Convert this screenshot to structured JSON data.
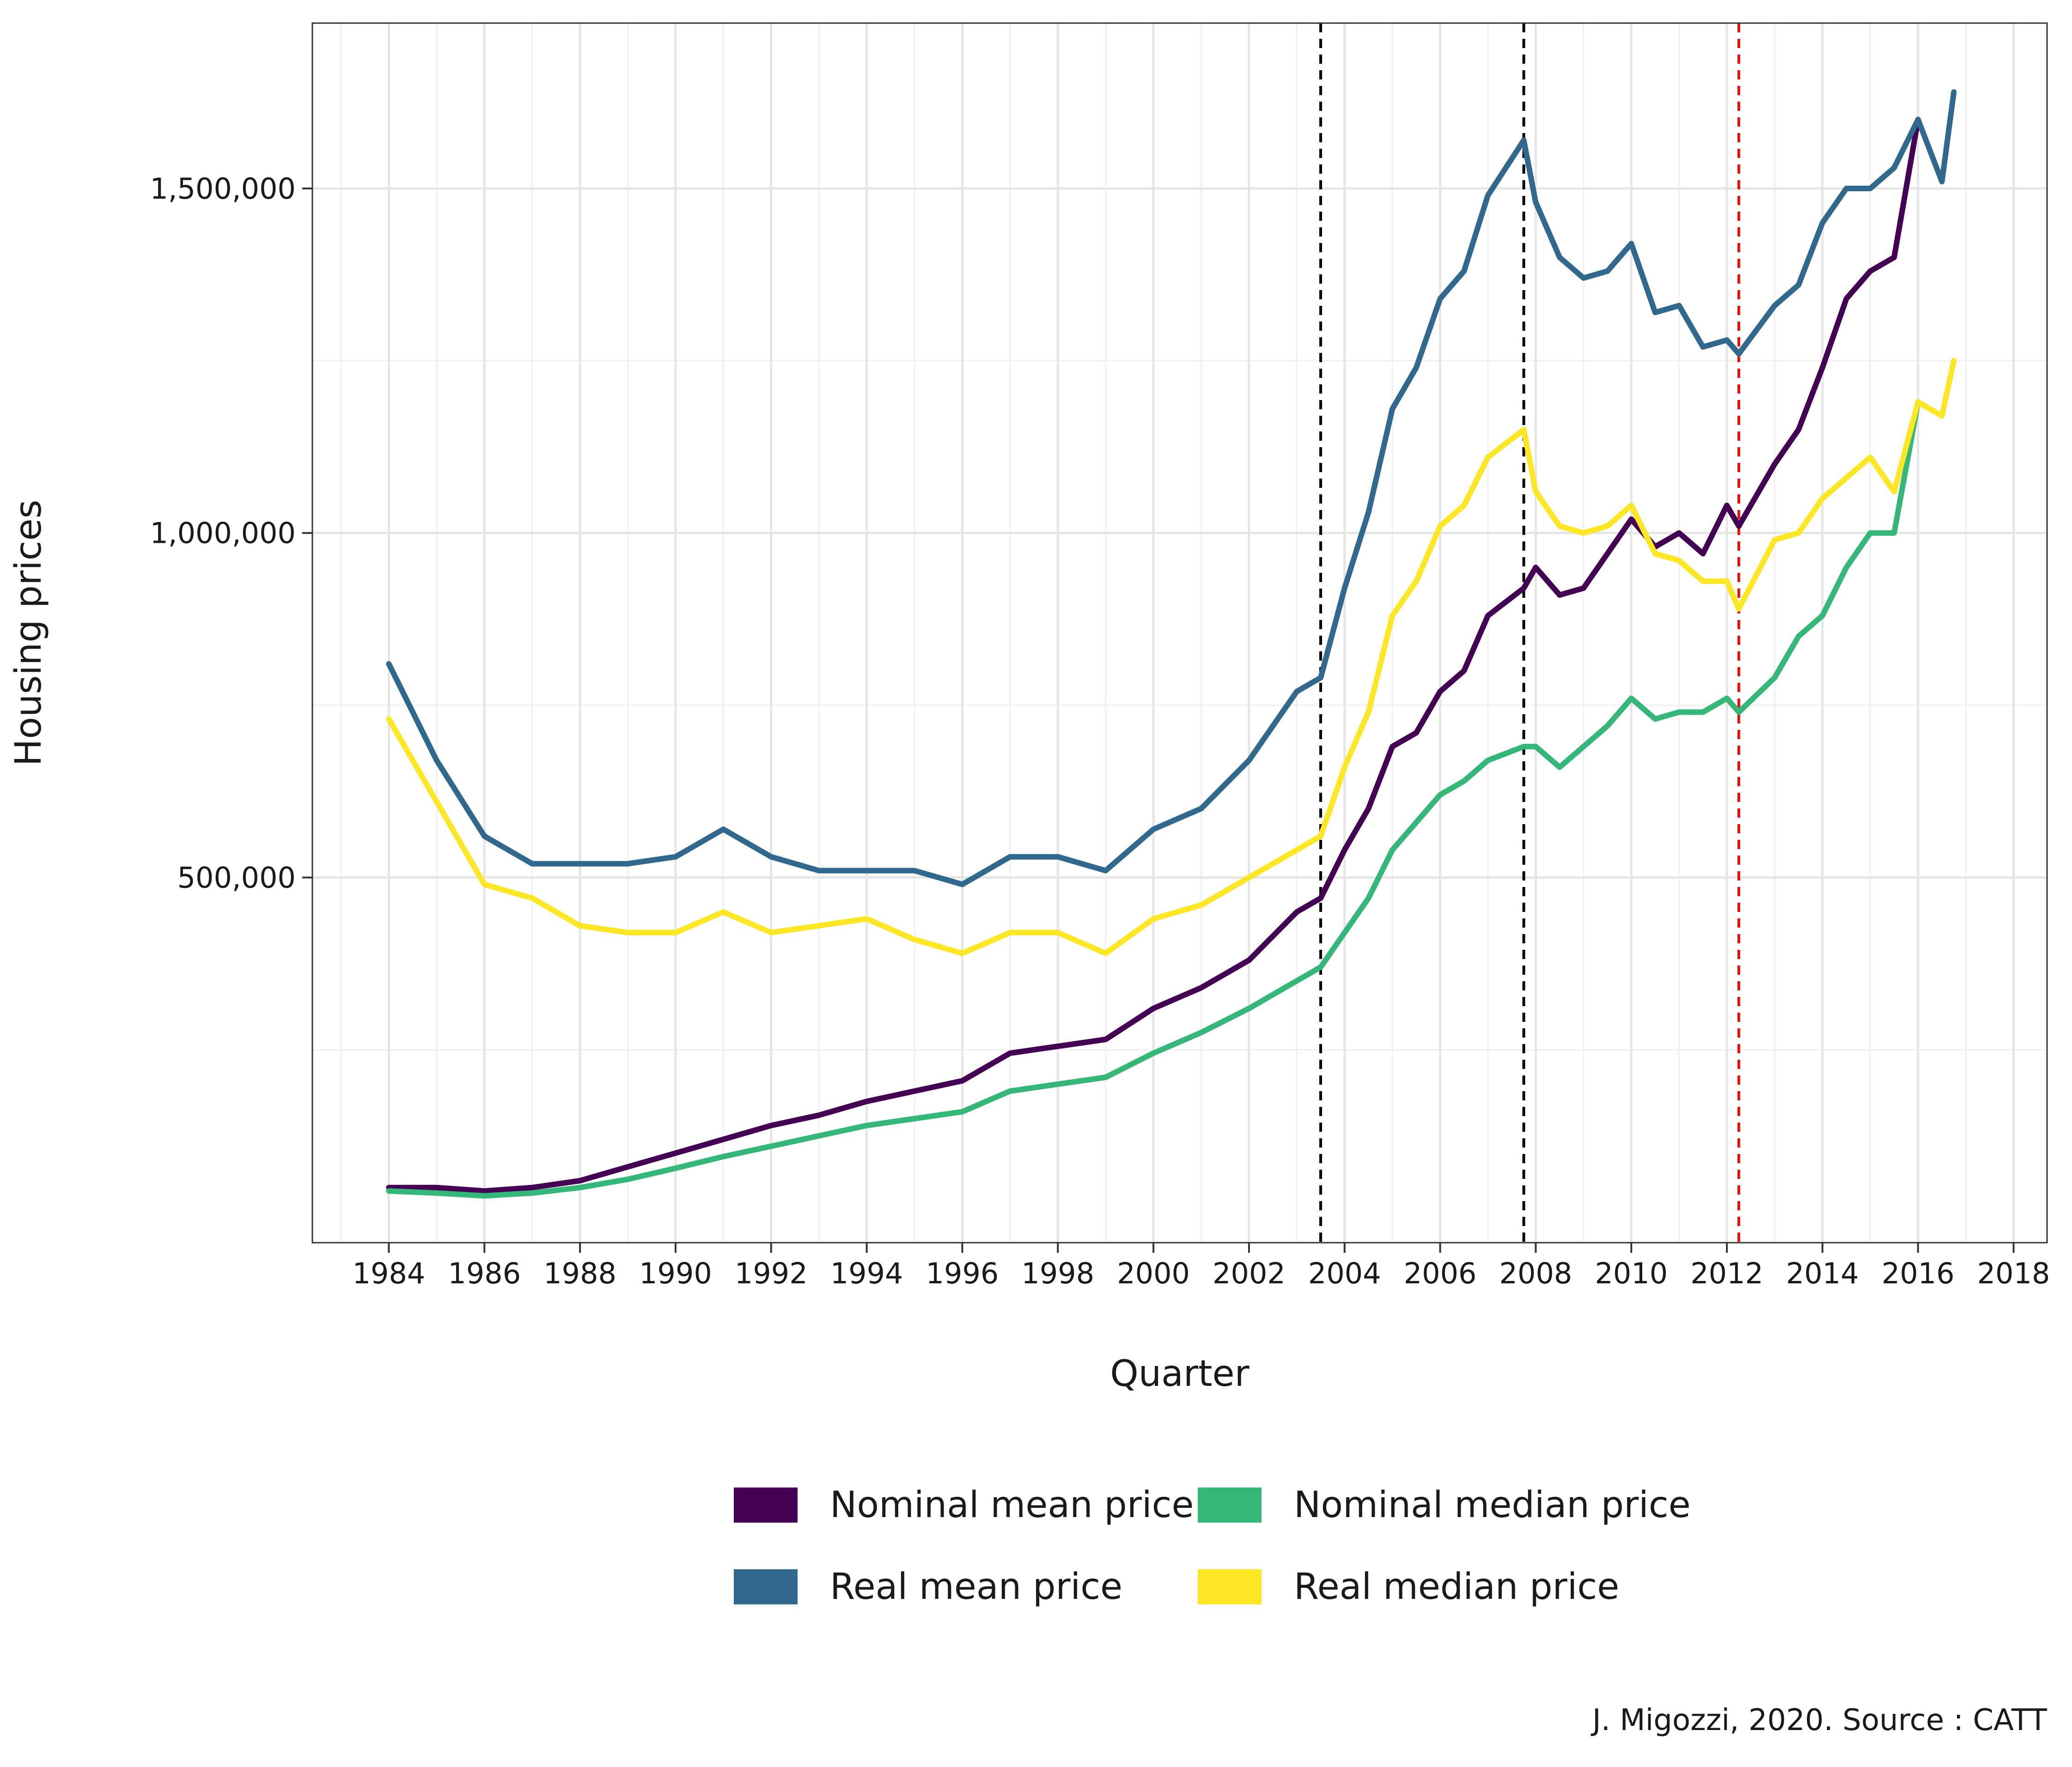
{
  "chart_data": {
    "type": "line",
    "xlabel": "Quarter",
    "ylabel": "Housing prices",
    "caption": "J. Migozzi, 2020. Source : CATT",
    "xlim": [
      1982.4,
      2018.7
    ],
    "ylim": [
      -30000,
      1740000
    ],
    "x_ticks": [
      "1984",
      "1986",
      "1988",
      "1990",
      "1992",
      "1994",
      "1996",
      "1998",
      "2000",
      "2002",
      "2004",
      "2006",
      "2008",
      "2010",
      "2012",
      "2014",
      "2016",
      "2018"
    ],
    "y_ticks": [
      {
        "value": 500000,
        "label": "500,000"
      },
      {
        "value": 1000000,
        "label": "1,000,000"
      },
      {
        "value": 1500000,
        "label": "1,500,000"
      }
    ],
    "grid": true,
    "legend_position": "bottom",
    "vlines": [
      {
        "x": 2003.5,
        "color": "#000000"
      },
      {
        "x": 2007.75,
        "color": "#000000"
      },
      {
        "x": 2012.25,
        "color": "#e8140c"
      }
    ],
    "series": [
      {
        "name": "Nominal mean price",
        "color": "#440154",
        "points": [
          [
            1984.0,
            50000
          ],
          [
            1985.0,
            50000
          ],
          [
            1986.0,
            45000
          ],
          [
            1987.0,
            50000
          ],
          [
            1988.0,
            60000
          ],
          [
            1989.0,
            80000
          ],
          [
            1990.0,
            100000
          ],
          [
            1991.0,
            120000
          ],
          [
            1992.0,
            140000
          ],
          [
            1993.0,
            155000
          ],
          [
            1994.0,
            175000
          ],
          [
            1995.0,
            190000
          ],
          [
            1996.0,
            205000
          ],
          [
            1997.0,
            245000
          ],
          [
            1998.0,
            255000
          ],
          [
            1999.0,
            265000
          ],
          [
            2000.0,
            310000
          ],
          [
            2001.0,
            340000
          ],
          [
            2002.0,
            380000
          ],
          [
            2003.0,
            450000
          ],
          [
            2003.5,
            470000
          ],
          [
            2004.0,
            540000
          ],
          [
            2004.5,
            600000
          ],
          [
            2005.0,
            690000
          ],
          [
            2005.5,
            710000
          ],
          [
            2006.0,
            770000
          ],
          [
            2006.5,
            800000
          ],
          [
            2007.0,
            880000
          ],
          [
            2007.75,
            920000
          ],
          [
            2008.0,
            950000
          ],
          [
            2008.5,
            910000
          ],
          [
            2009.0,
            920000
          ],
          [
            2009.5,
            970000
          ],
          [
            2010.0,
            1020000
          ],
          [
            2010.5,
            980000
          ],
          [
            2011.0,
            1000000
          ],
          [
            2011.5,
            970000
          ],
          [
            2012.0,
            1040000
          ],
          [
            2012.25,
            1010000
          ],
          [
            2013.0,
            1100000
          ],
          [
            2013.5,
            1150000
          ],
          [
            2014.0,
            1240000
          ],
          [
            2014.5,
            1340000
          ],
          [
            2015.0,
            1380000
          ],
          [
            2015.5,
            1400000
          ],
          [
            2016.0,
            1600000
          ]
        ]
      },
      {
        "name": "Nominal median price",
        "color": "#35b779",
        "points": [
          [
            1984.0,
            45000
          ],
          [
            1985.0,
            42000
          ],
          [
            1986.0,
            38000
          ],
          [
            1987.0,
            42000
          ],
          [
            1988.0,
            50000
          ],
          [
            1989.0,
            62000
          ],
          [
            1990.0,
            78000
          ],
          [
            1991.0,
            95000
          ],
          [
            1992.0,
            110000
          ],
          [
            1993.0,
            125000
          ],
          [
            1994.0,
            140000
          ],
          [
            1995.0,
            150000
          ],
          [
            1996.0,
            160000
          ],
          [
            1997.0,
            190000
          ],
          [
            1998.0,
            200000
          ],
          [
            1999.0,
            210000
          ],
          [
            2000.0,
            245000
          ],
          [
            2001.0,
            275000
          ],
          [
            2002.0,
            310000
          ],
          [
            2003.0,
            350000
          ],
          [
            2003.5,
            370000
          ],
          [
            2004.0,
            420000
          ],
          [
            2004.5,
            470000
          ],
          [
            2005.0,
            540000
          ],
          [
            2005.5,
            580000
          ],
          [
            2006.0,
            620000
          ],
          [
            2006.5,
            640000
          ],
          [
            2007.0,
            670000
          ],
          [
            2007.75,
            690000
          ],
          [
            2008.0,
            690000
          ],
          [
            2008.5,
            660000
          ],
          [
            2009.0,
            690000
          ],
          [
            2009.5,
            720000
          ],
          [
            2010.0,
            760000
          ],
          [
            2010.5,
            730000
          ],
          [
            2011.0,
            740000
          ],
          [
            2011.5,
            740000
          ],
          [
            2012.0,
            760000
          ],
          [
            2012.25,
            740000
          ],
          [
            2013.0,
            790000
          ],
          [
            2013.5,
            850000
          ],
          [
            2014.0,
            880000
          ],
          [
            2014.5,
            950000
          ],
          [
            2015.0,
            1000000
          ],
          [
            2015.5,
            1000000
          ],
          [
            2016.0,
            1190000
          ]
        ]
      },
      {
        "name": "Real mean price",
        "color": "#31688e",
        "points": [
          [
            1984.0,
            810000
          ],
          [
            1985.0,
            670000
          ],
          [
            1986.0,
            560000
          ],
          [
            1987.0,
            520000
          ],
          [
            1988.0,
            520000
          ],
          [
            1989.0,
            520000
          ],
          [
            1990.0,
            530000
          ],
          [
            1991.0,
            570000
          ],
          [
            1992.0,
            530000
          ],
          [
            1993.0,
            510000
          ],
          [
            1994.0,
            510000
          ],
          [
            1995.0,
            510000
          ],
          [
            1996.0,
            490000
          ],
          [
            1997.0,
            530000
          ],
          [
            1998.0,
            530000
          ],
          [
            1999.0,
            510000
          ],
          [
            2000.0,
            570000
          ],
          [
            2001.0,
            600000
          ],
          [
            2002.0,
            670000
          ],
          [
            2003.0,
            770000
          ],
          [
            2003.5,
            790000
          ],
          [
            2004.0,
            920000
          ],
          [
            2004.5,
            1030000
          ],
          [
            2005.0,
            1180000
          ],
          [
            2005.5,
            1240000
          ],
          [
            2006.0,
            1340000
          ],
          [
            2006.5,
            1380000
          ],
          [
            2007.0,
            1490000
          ],
          [
            2007.75,
            1570000
          ],
          [
            2008.0,
            1480000
          ],
          [
            2008.5,
            1400000
          ],
          [
            2009.0,
            1370000
          ],
          [
            2009.5,
            1380000
          ],
          [
            2010.0,
            1420000
          ],
          [
            2010.5,
            1320000
          ],
          [
            2011.0,
            1330000
          ],
          [
            2011.5,
            1270000
          ],
          [
            2012.0,
            1280000
          ],
          [
            2012.25,
            1260000
          ],
          [
            2013.0,
            1330000
          ],
          [
            2013.5,
            1360000
          ],
          [
            2014.0,
            1450000
          ],
          [
            2014.5,
            1500000
          ],
          [
            2015.0,
            1500000
          ],
          [
            2015.5,
            1530000
          ],
          [
            2016.0,
            1600000
          ],
          [
            2016.5,
            1510000
          ],
          [
            2016.75,
            1640000
          ]
        ]
      },
      {
        "name": "Real median price",
        "color": "#fde725",
        "points": [
          [
            1984.0,
            730000
          ],
          [
            1985.0,
            610000
          ],
          [
            1986.0,
            490000
          ],
          [
            1987.0,
            470000
          ],
          [
            1988.0,
            430000
          ],
          [
            1989.0,
            420000
          ],
          [
            1990.0,
            420000
          ],
          [
            1991.0,
            450000
          ],
          [
            1992.0,
            420000
          ],
          [
            1993.0,
            430000
          ],
          [
            1994.0,
            440000
          ],
          [
            1995.0,
            410000
          ],
          [
            1996.0,
            390000
          ],
          [
            1997.0,
            420000
          ],
          [
            1998.0,
            420000
          ],
          [
            1999.0,
            390000
          ],
          [
            2000.0,
            440000
          ],
          [
            2001.0,
            460000
          ],
          [
            2002.0,
            500000
          ],
          [
            2003.0,
            540000
          ],
          [
            2003.5,
            560000
          ],
          [
            2004.0,
            660000
          ],
          [
            2004.5,
            740000
          ],
          [
            2005.0,
            880000
          ],
          [
            2005.5,
            930000
          ],
          [
            2006.0,
            1010000
          ],
          [
            2006.5,
            1040000
          ],
          [
            2007.0,
            1110000
          ],
          [
            2007.75,
            1150000
          ],
          [
            2008.0,
            1060000
          ],
          [
            2008.5,
            1010000
          ],
          [
            2009.0,
            1000000
          ],
          [
            2009.5,
            1010000
          ],
          [
            2010.0,
            1040000
          ],
          [
            2010.5,
            970000
          ],
          [
            2011.0,
            960000
          ],
          [
            2011.5,
            930000
          ],
          [
            2012.0,
            930000
          ],
          [
            2012.25,
            890000
          ],
          [
            2013.0,
            990000
          ],
          [
            2013.5,
            1000000
          ],
          [
            2014.0,
            1050000
          ],
          [
            2014.5,
            1080000
          ],
          [
            2015.0,
            1110000
          ],
          [
            2015.5,
            1060000
          ],
          [
            2016.0,
            1190000
          ],
          [
            2016.5,
            1170000
          ],
          [
            2016.75,
            1250000
          ]
        ]
      }
    ]
  }
}
